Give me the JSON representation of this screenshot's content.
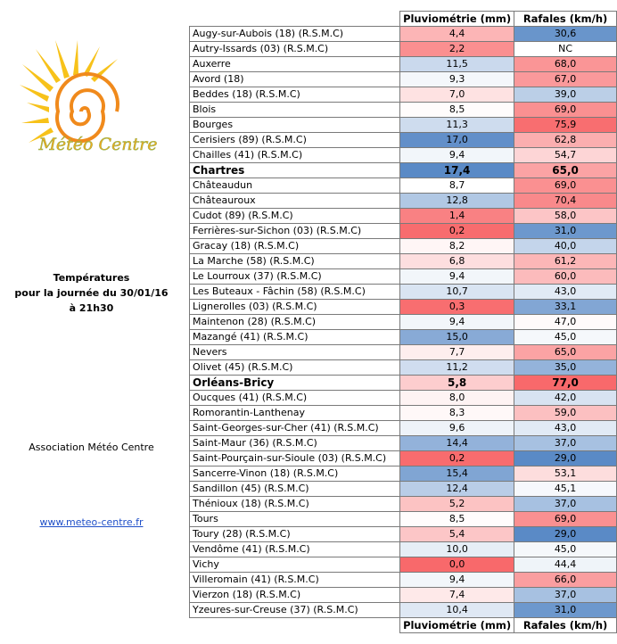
{
  "sidebar": {
    "logo_text": "Météo Centre",
    "title": "Températures",
    "subtitle": "pour la journée du 30/01/16",
    "time": "à 21h30",
    "association": "Association Météo Centre",
    "link": "www.meteo-centre.fr"
  },
  "table": {
    "header_top": {
      "rain": "Pluviométrie (mm)",
      "gust": "Rafales (km/h)"
    },
    "header_bottom": {
      "rain": "Pluviométrie (mm)",
      "gust": "Rafales (km/h)"
    },
    "rain_scale": {
      "low": "#f8696b",
      "mid": "#ffffff",
      "high": "#5a8ac6"
    },
    "gust_scale": {
      "low": "#5a8ac6",
      "mid": "#ffffff",
      "high": "#f8696b"
    },
    "rows": [
      {
        "name": "Augy-sur-Aubois (18) (R.S.M.C)",
        "rain": "4,4",
        "gust": "30,6"
      },
      {
        "name": "Autry-Issards (03) (R.S.M.C)",
        "rain": "2,2",
        "gust": "NC"
      },
      {
        "name": "Auxerre",
        "rain": "11,5",
        "gust": "68,0"
      },
      {
        "name": "Avord (18)",
        "rain": "9,3",
        "gust": "67,0"
      },
      {
        "name": "Beddes (18) (R.S.M.C)",
        "rain": "7,0",
        "gust": "39,0"
      },
      {
        "name": "Blois",
        "rain": "8,5",
        "gust": "69,0"
      },
      {
        "name": "Bourges",
        "rain": "11,3",
        "gust": "75,9"
      },
      {
        "name": "Cerisiers (89) (R.S.M.C)",
        "rain": "17,0",
        "gust": "62,8"
      },
      {
        "name": "Chailles (41) (R.S.M.C)",
        "rain": "9,4",
        "gust": "54,7"
      },
      {
        "name": "Chartres",
        "rain": "17,4",
        "gust": "65,0",
        "bold": true
      },
      {
        "name": "Châteaudun",
        "rain": "8,7",
        "gust": "69,0"
      },
      {
        "name": "Châteauroux",
        "rain": "12,8",
        "gust": "70,4"
      },
      {
        "name": "Cudot (89) (R.S.M.C)",
        "rain": "1,4",
        "gust": "58,0"
      },
      {
        "name": "Ferrières-sur-Sichon (03) (R.S.M.C)",
        "rain": "0,2",
        "gust": "31,0"
      },
      {
        "name": "Gracay (18) (R.S.M.C)",
        "rain": "8,2",
        "gust": "40,0"
      },
      {
        "name": "La Marche (58) (R.S.M.C)",
        "rain": "6,8",
        "gust": "61,2"
      },
      {
        "name": "Le Lourroux (37) (R.S.M.C)",
        "rain": "9,4",
        "gust": "60,0"
      },
      {
        "name": "Les Buteaux - Fâchin (58) (R.S.M.C)",
        "rain": "10,7",
        "gust": "43,0"
      },
      {
        "name": "Lignerolles (03) (R.S.M.C)",
        "rain": "0,3",
        "gust": "33,1"
      },
      {
        "name": "Maintenon (28) (R.S.M.C)",
        "rain": "9,4",
        "gust": "47,0"
      },
      {
        "name": "Mazangé (41) (R.S.M.C)",
        "rain": "15,0",
        "gust": "45,0"
      },
      {
        "name": "Nevers",
        "rain": "7,7",
        "gust": "65,0"
      },
      {
        "name": "Olivet (45) (R.S.M.C)",
        "rain": "11,2",
        "gust": "35,0"
      },
      {
        "name": "Orléans-Bricy",
        "rain": "5,8",
        "gust": "77,0",
        "bold": true
      },
      {
        "name": "Oucques (41) (R.S.M.C)",
        "rain": "8,0",
        "gust": "42,0"
      },
      {
        "name": "Romorantin-Lanthenay",
        "rain": "8,3",
        "gust": "59,0"
      },
      {
        "name": "Saint-Georges-sur-Cher (41) (R.S.M.C)",
        "rain": "9,6",
        "gust": "43,0"
      },
      {
        "name": "Saint-Maur (36) (R.S.M.C)",
        "rain": "14,4",
        "gust": "37,0"
      },
      {
        "name": "Saint-Pourçain-sur-Sioule (03) (R.S.M.C)",
        "rain": "0,2",
        "gust": "29,0"
      },
      {
        "name": "Sancerre-Vinon  (18) (R.S.M.C)",
        "rain": "15,4",
        "gust": "53,1"
      },
      {
        "name": "Sandillon (45) (R.S.M.C)",
        "rain": "12,4",
        "gust": "45,1"
      },
      {
        "name": "Thénioux (18) (R.S.M.C)",
        "rain": "5,2",
        "gust": "37,0"
      },
      {
        "name": "Tours",
        "rain": "8,5",
        "gust": "69,0"
      },
      {
        "name": "Toury (28) (R.S.M.C)",
        "rain": "5,4",
        "gust": "29,0"
      },
      {
        "name": "Vendôme (41) (R.S.M.C)",
        "rain": "10,0",
        "gust": "45,0"
      },
      {
        "name": "Vichy",
        "rain": "0,0",
        "gust": "44,4"
      },
      {
        "name": "Villeromain (41) (R.S.M.C)",
        "rain": "9,4",
        "gust": "66,0"
      },
      {
        "name": "Vierzon (18) (R.S.M.C)",
        "rain": "7,4",
        "gust": "37,0"
      },
      {
        "name": "Yzeures-sur-Creuse (37) (R.S.M.C)",
        "rain": "10,4",
        "gust": "31,0"
      }
    ]
  }
}
